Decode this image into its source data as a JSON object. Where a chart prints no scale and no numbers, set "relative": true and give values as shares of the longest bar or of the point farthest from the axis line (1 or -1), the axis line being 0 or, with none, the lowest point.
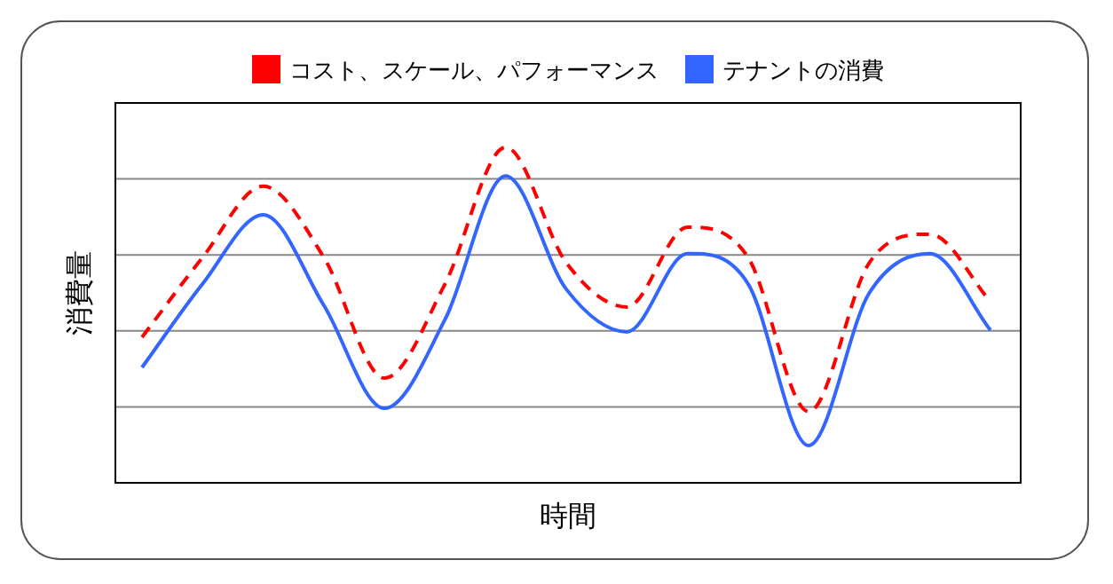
{
  "chart_data": {
    "type": "line",
    "relative": true,
    "xlabel": "時間",
    "ylabel": "消費量",
    "legend": "top",
    "grid": "y",
    "categories": [
      null,
      null,
      null,
      null,
      null,
      null,
      null,
      null,
      null,
      null,
      null,
      null,
      null,
      null,
      null
    ],
    "series": [
      {
        "name": "コスト、スケール、パフォーマンス",
        "color": "#ff0000",
        "line_style": "dashed",
        "values": [
          0.434,
          0.672,
          0.884,
          0.672,
          0.312,
          0.593,
          1,
          0.656,
          0.524,
          0.762,
          0.672,
          0.212,
          0.656,
          0.741,
          0.54
        ]
      },
      {
        "name": "テナントの消費",
        "color": "#3366ff",
        "line_style": "solid",
        "values": [
          0.344,
          0.593,
          0.799,
          0.529,
          0.222,
          0.487,
          0.915,
          0.577,
          0.45,
          0.683,
          0.593,
          0.111,
          0.566,
          0.683,
          0.455
        ]
      }
    ]
  }
}
